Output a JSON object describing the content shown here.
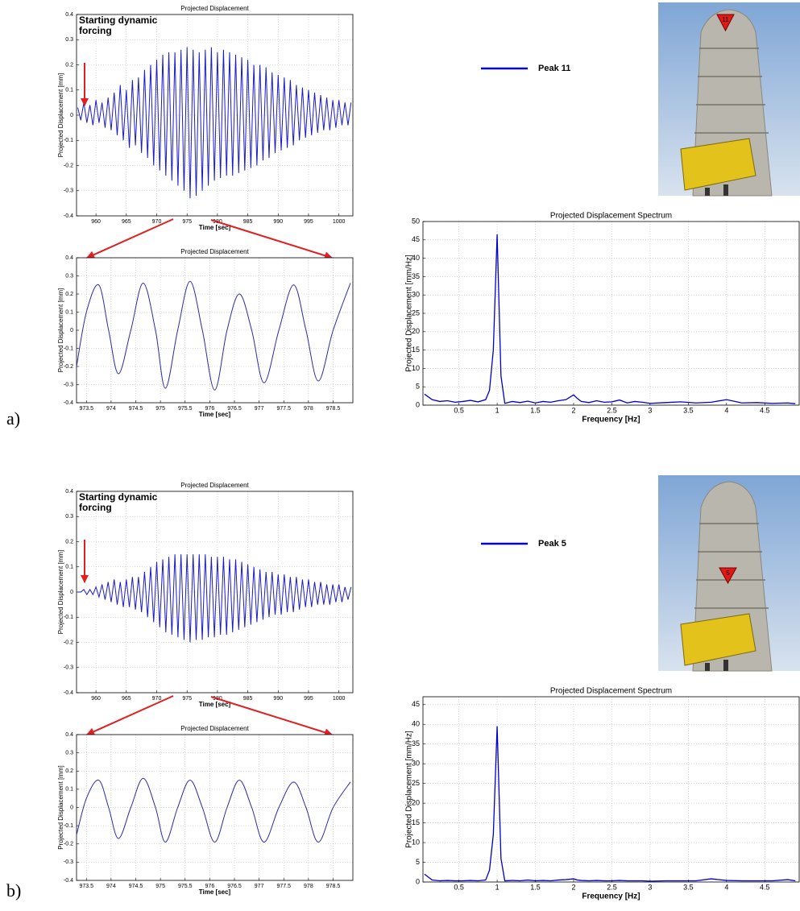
{
  "panel_labels": [
    "a)",
    "b)"
  ],
  "photo_markers": [
    "11",
    "5"
  ],
  "chart_data": [
    {
      "type": "line",
      "title": "Projected Displacement",
      "x_label": "Time [sec]",
      "y_label": "Projected Displacement [mm]",
      "annotation": [
        "Starting dynamic",
        "forcing"
      ],
      "x": [
        957,
        957.5,
        958,
        958.5,
        959,
        959.5,
        960,
        960.5,
        961,
        961.5,
        962,
        962.5,
        963,
        963.5,
        964,
        964.5,
        965,
        965.5,
        966,
        966.5,
        967,
        967.5,
        968,
        968.5,
        969,
        969.5,
        970,
        970.5,
        971,
        971.5,
        972,
        972.5,
        973,
        973.5,
        974,
        974.5,
        975,
        975.5,
        976,
        976.5,
        977,
        977.5,
        978,
        978.5,
        979,
        979.5,
        980,
        980.5,
        981,
        981.5,
        982,
        982.5,
        983,
        983.5,
        984,
        984.5,
        985,
        985.5,
        986,
        986.5,
        987,
        987.5,
        988,
        988.5,
        989,
        989.5,
        990,
        990.5,
        991,
        991.5,
        992,
        992.5,
        993,
        993.5,
        994,
        994.5,
        995,
        995.5,
        996,
        996.5,
        997,
        997.5,
        998,
        998.5,
        999,
        999.5,
        1000,
        1000.5,
        1001,
        1001.5,
        1002
      ],
      "series": [
        {
          "color": "#1a1acc",
          "values": [
            0.03,
            -0.02,
            0.05,
            -0.03,
            0.04,
            -0.04,
            0.06,
            -0.03,
            0.05,
            -0.05,
            0.07,
            -0.06,
            0.09,
            -0.08,
            0.12,
            -0.1,
            0.1,
            -0.13,
            0.14,
            -0.12,
            0.15,
            -0.15,
            0.18,
            -0.17,
            0.2,
            -0.2,
            0.22,
            -0.22,
            0.24,
            -0.24,
            0.25,
            -0.26,
            0.25,
            -0.28,
            0.26,
            -0.3,
            0.27,
            -0.33,
            0.26,
            -0.32,
            0.25,
            -0.3,
            0.26,
            -0.28,
            0.27,
            -0.26,
            0.25,
            -0.25,
            0.26,
            -0.24,
            0.25,
            -0.24,
            0.24,
            -0.23,
            0.23,
            -0.22,
            0.22,
            -0.21,
            0.2,
            -0.2,
            0.2,
            -0.18,
            0.19,
            -0.17,
            0.17,
            -0.15,
            0.16,
            -0.14,
            0.15,
            -0.13,
            0.14,
            -0.12,
            0.12,
            -0.1,
            0.11,
            -0.09,
            0.1,
            -0.08,
            0.09,
            -0.07,
            0.08,
            -0.06,
            0.07,
            -0.06,
            0.06,
            -0.05,
            0.06,
            -0.04,
            0.05,
            -0.04,
            0.05
          ]
        }
      ],
      "xlim": [
        956.8,
        1002.3
      ],
      "xticks": [
        960,
        965,
        970,
        975,
        980,
        985,
        990,
        995,
        1000
      ],
      "ylim": [
        -0.4,
        0.4
      ],
      "yticks": [
        -0.4,
        -0.3,
        -0.2,
        -0.1,
        0,
        0.1,
        0.2,
        0.3,
        0.4
      ],
      "grid": true
    },
    {
      "type": "line",
      "title": "Projected Displacement",
      "x_label": "Time [sec]",
      "y_label": "Projected Displacement [mm]",
      "smooth": true,
      "x": [
        973.3,
        973.5,
        973.75,
        973.95,
        974.15,
        974.4,
        974.65,
        974.9,
        975.1,
        975.35,
        975.6,
        975.85,
        976.1,
        976.35,
        976.6,
        976.85,
        977.1,
        977.4,
        977.7,
        977.95,
        978.2,
        978.5,
        978.85
      ],
      "series": [
        {
          "color": "#2a2aa8",
          "values": [
            -0.2,
            0.1,
            0.25,
            0,
            -0.24,
            0,
            0.26,
            0,
            -0.32,
            0,
            0.27,
            0,
            -0.33,
            0,
            0.2,
            0,
            -0.29,
            0,
            0.25,
            0,
            -0.28,
            0,
            0.26
          ]
        }
      ],
      "xlim": [
        973.3,
        978.9
      ],
      "xticks": [
        973.5,
        974,
        974.5,
        975,
        975.5,
        976,
        976.5,
        977,
        977.5,
        978,
        978.5
      ],
      "ylim": [
        -0.4,
        0.4
      ],
      "yticks": [
        -0.4,
        -0.3,
        -0.2,
        -0.1,
        0,
        0.1,
        0.2,
        0.3,
        0.4
      ],
      "grid": true
    },
    {
      "type": "line",
      "title": "Projected Displacement Spectrum",
      "x_label": "Frequency [Hz]",
      "y_label": "Projected Displacement [mm/Hz]",
      "legend": "outside-top",
      "x": [
        0.05,
        0.15,
        0.25,
        0.35,
        0.45,
        0.55,
        0.65,
        0.75,
        0.85,
        0.9,
        0.95,
        1.0,
        1.05,
        1.1,
        1.2,
        1.3,
        1.4,
        1.5,
        1.6,
        1.7,
        1.8,
        1.9,
        2.0,
        2.05,
        2.1,
        2.2,
        2.3,
        2.4,
        2.5,
        2.6,
        2.7,
        2.8,
        2.9,
        3.0,
        3.2,
        3.4,
        3.6,
        3.8,
        4.0,
        4.2,
        4.4,
        4.6,
        4.8,
        4.9
      ],
      "series": [
        {
          "name": "Peak 11",
          "color": "#0000cc",
          "values": [
            3,
            1.5,
            1,
            1.2,
            0.8,
            1,
            1.3,
            0.9,
            1.5,
            4,
            15,
            46.5,
            8,
            0.5,
            1,
            0.7,
            1.1,
            0.6,
            1,
            0.8,
            1.2,
            1.5,
            2.8,
            1.8,
            1,
            0.7,
            1.2,
            0.8,
            0.9,
            1.4,
            0.6,
            1,
            0.8,
            0.5,
            0.7,
            0.9,
            0.6,
            0.8,
            1.5,
            0.6,
            0.7,
            0.5,
            0.6,
            0.4
          ]
        }
      ],
      "xlim": [
        0.03,
        4.95
      ],
      "xticks": [
        0.5,
        1,
        1.5,
        2,
        2.5,
        3,
        3.5,
        4,
        4.5
      ],
      "ylim": [
        0,
        50
      ],
      "yticks": [
        0,
        5,
        10,
        15,
        20,
        25,
        30,
        35,
        40,
        45,
        50
      ],
      "grid": true
    },
    {
      "type": "line",
      "title": "Projected Displacement",
      "x_label": "Time [sec]",
      "y_label": "Projected Displacement [mm]",
      "annotation": [
        "Starting dynamic",
        "forcing"
      ],
      "x": [
        957,
        957.5,
        958,
        958.5,
        959,
        959.5,
        960,
        960.5,
        961,
        961.5,
        962,
        962.5,
        963,
        963.5,
        964,
        964.5,
        965,
        965.5,
        966,
        966.5,
        967,
        967.5,
        968,
        968.5,
        969,
        969.5,
        970,
        970.5,
        971,
        971.5,
        972,
        972.5,
        973,
        973.5,
        974,
        974.5,
        975,
        975.5,
        976,
        976.5,
        977,
        977.5,
        978,
        978.5,
        979,
        979.5,
        980,
        980.5,
        981,
        981.5,
        982,
        982.5,
        983,
        983.5,
        984,
        984.5,
        985,
        985.5,
        986,
        986.5,
        987,
        987.5,
        988,
        988.5,
        989,
        989.5,
        990,
        990.5,
        991,
        991.5,
        992,
        992.5,
        993,
        993.5,
        994,
        994.5,
        995,
        995.5,
        996,
        996.5,
        997,
        997.5,
        998,
        998.5,
        999,
        999.5,
        1000,
        1000.5,
        1001,
        1001.5,
        1002
      ],
      "series": [
        {
          "color": "#1a1acc",
          "values": [
            0,
            0,
            0.01,
            -0.01,
            0.01,
            -0.01,
            0.02,
            -0.02,
            0.03,
            -0.03,
            0.04,
            -0.04,
            0.05,
            -0.05,
            0.04,
            -0.06,
            0.05,
            -0.06,
            0.06,
            -0.07,
            0.06,
            -0.08,
            0.08,
            -0.1,
            0.1,
            -0.12,
            0.12,
            -0.14,
            0.13,
            -0.16,
            0.14,
            -0.17,
            0.15,
            -0.18,
            0.15,
            -0.19,
            0.15,
            -0.2,
            0.15,
            -0.19,
            0.15,
            -0.19,
            0.15,
            -0.18,
            0.14,
            -0.18,
            0.14,
            -0.17,
            0.14,
            -0.17,
            0.13,
            -0.16,
            0.13,
            -0.15,
            0.12,
            -0.14,
            0.11,
            -0.13,
            0.1,
            -0.12,
            0.09,
            -0.11,
            0.08,
            -0.1,
            0.08,
            -0.09,
            0.07,
            -0.09,
            0.07,
            -0.08,
            0.06,
            -0.08,
            0.06,
            -0.07,
            0.05,
            -0.06,
            0.05,
            -0.06,
            0.04,
            -0.05,
            0.04,
            -0.05,
            0.03,
            -0.05,
            0.03,
            -0.04,
            0.03,
            -0.04,
            0.02,
            -0.03,
            0.02
          ]
        }
      ],
      "xlim": [
        956.8,
        1002.3
      ],
      "xticks": [
        960,
        965,
        970,
        975,
        980,
        985,
        990,
        995,
        1000
      ],
      "ylim": [
        -0.4,
        0.4
      ],
      "yticks": [
        -0.4,
        -0.3,
        -0.2,
        -0.1,
        0,
        0.1,
        0.2,
        0.3,
        0.4
      ],
      "grid": true
    },
    {
      "type": "line",
      "title": "Projected Displacement",
      "x_label": "Time [sec]",
      "y_label": "Projected Displacement [mm]",
      "smooth": true,
      "x": [
        973.3,
        973.5,
        973.75,
        973.95,
        974.15,
        974.4,
        974.65,
        974.9,
        975.1,
        975.35,
        975.6,
        975.85,
        976.1,
        976.35,
        976.6,
        976.85,
        977.1,
        977.4,
        977.7,
        977.95,
        978.2,
        978.5,
        978.85
      ],
      "series": [
        {
          "color": "#2a2aa8",
          "values": [
            -0.15,
            0.05,
            0.15,
            0,
            -0.17,
            0,
            0.16,
            0,
            -0.19,
            0,
            0.15,
            0,
            -0.19,
            0,
            0.15,
            0,
            -0.19,
            0,
            0.14,
            0,
            -0.19,
            0,
            0.14
          ]
        }
      ],
      "xlim": [
        973.3,
        978.9
      ],
      "xticks": [
        973.5,
        974,
        974.5,
        975,
        975.5,
        976,
        976.5,
        977,
        977.5,
        978,
        978.5
      ],
      "ylim": [
        -0.4,
        0.4
      ],
      "yticks": [
        -0.4,
        -0.3,
        -0.2,
        -0.1,
        0,
        0.1,
        0.2,
        0.3,
        0.4
      ],
      "grid": true
    },
    {
      "type": "line",
      "title": "Projected Displacement Spectrum",
      "x_label": "Frequency [Hz]",
      "y_label": "Projected Displacement [mm/Hz]",
      "legend": "outside-top",
      "x": [
        0.05,
        0.15,
        0.25,
        0.35,
        0.45,
        0.55,
        0.65,
        0.75,
        0.85,
        0.9,
        0.95,
        1.0,
        1.05,
        1.1,
        1.2,
        1.3,
        1.4,
        1.5,
        1.6,
        1.7,
        1.8,
        1.9,
        2.0,
        2.05,
        2.1,
        2.2,
        2.3,
        2.4,
        2.5,
        2.6,
        2.7,
        2.8,
        2.9,
        3.0,
        3.2,
        3.4,
        3.6,
        3.8,
        4.0,
        4.2,
        4.4,
        4.6,
        4.8,
        4.9
      ],
      "series": [
        {
          "name": "Peak 5",
          "color": "#0000cc",
          "values": [
            2,
            0.5,
            0.3,
            0.4,
            0.3,
            0.3,
            0.4,
            0.3,
            0.5,
            3,
            12,
            39.5,
            6,
            0.3,
            0.4,
            0.3,
            0.5,
            0.3,
            0.4,
            0.3,
            0.5,
            0.6,
            0.8,
            0.5,
            0.4,
            0.3,
            0.4,
            0.3,
            0.3,
            0.4,
            0.3,
            0.3,
            0.3,
            0.2,
            0.3,
            0.3,
            0.3,
            0.8,
            0.4,
            0.3,
            0.3,
            0.3,
            0.6,
            0.3
          ]
        }
      ],
      "xlim": [
        0.03,
        4.95
      ],
      "xticks": [
        0.5,
        1,
        1.5,
        2,
        2.5,
        3,
        3.5,
        4,
        4.5
      ],
      "ylim": [
        0,
        47
      ],
      "yticks": [
        0,
        5,
        10,
        15,
        20,
        25,
        30,
        35,
        40,
        45
      ],
      "grid": true
    }
  ]
}
